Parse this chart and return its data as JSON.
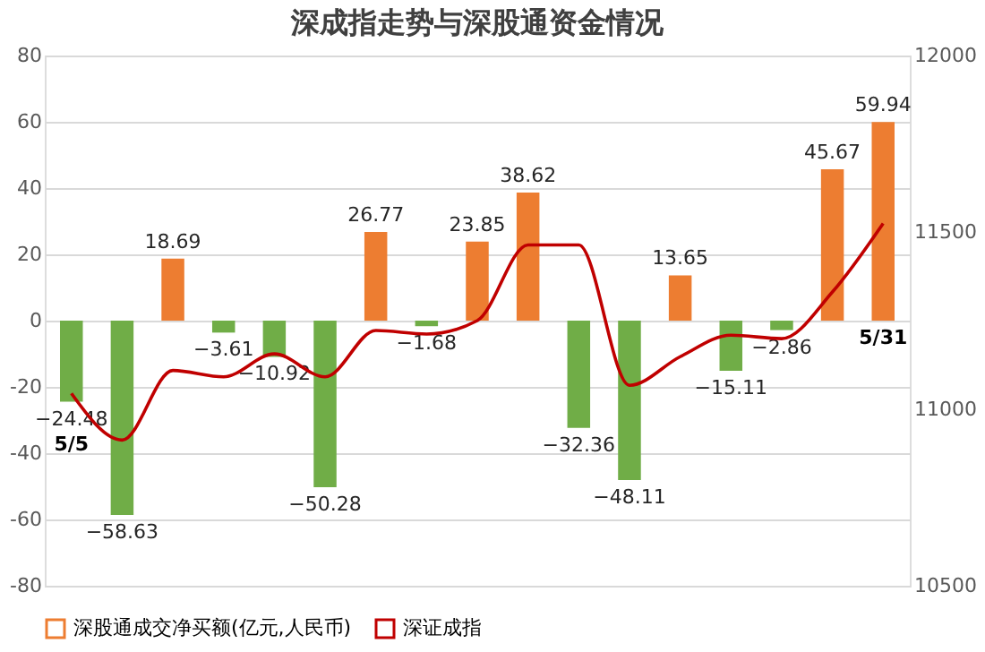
{
  "chart_data": {
    "type": "bar",
    "title": "深成指走势与深股通资金情况",
    "categories": [
      null,
      null,
      null,
      null,
      null,
      null,
      null,
      null,
      null,
      null,
      null,
      null,
      null,
      null,
      null,
      null,
      null
    ],
    "series": [
      {
        "name": "深股通成交净买额(亿元,人民币)",
        "color": "#ed7d31",
        "colors": [
          "#70ad47",
          "#70ad47",
          "#ed7d31",
          "#70ad47",
          "#70ad47",
          "#70ad47",
          "#ed7d31",
          "#70ad47",
          "#ed7d31",
          "#ed7d31",
          "#70ad47",
          "#70ad47",
          "#ed7d31",
          "#70ad47",
          "#70ad47",
          "#ed7d31",
          "#ed7d31"
        ],
        "values": [
          -24.48,
          -58.63,
          18.69,
          -3.61,
          -10.92,
          -50.28,
          26.77,
          -1.68,
          23.85,
          38.62,
          -32.36,
          -48.11,
          13.65,
          -15.11,
          -2.86,
          45.67,
          59.94
        ],
        "value_labels": [
          "−24.48",
          "−58.63",
          "18.69",
          "−3.61",
          "−10.92",
          "−50.28",
          "26.77",
          "−1.68",
          "23.85",
          "38.62",
          "−32.36",
          "−48.11",
          "13.65",
          "−15.11",
          "−2.86",
          "45.67",
          "59.94"
        ]
      },
      {
        "name": "深证成指",
        "type": "line",
        "axis": "y2",
        "color": "#c00000",
        "values": [
          11044,
          10912,
          11109,
          11091,
          11156,
          11091,
          11222,
          11212,
          11250,
          11464,
          11464,
          11067,
          11148,
          11209,
          11199,
          11331,
          11525
        ]
      }
    ],
    "ylim": [
      -80,
      80
    ],
    "yticks": [
      -80,
      -60,
      -40,
      -20,
      0,
      20,
      40,
      60,
      80
    ],
    "y2lim": [
      10500,
      12000
    ],
    "y2ticks": [
      10500,
      11000,
      11500,
      12000
    ],
    "grid": "y",
    "legend": "bottom",
    "tick_labels": "y",
    "marker": "none",
    "annotations": [
      "5/5",
      "5/31"
    ]
  }
}
